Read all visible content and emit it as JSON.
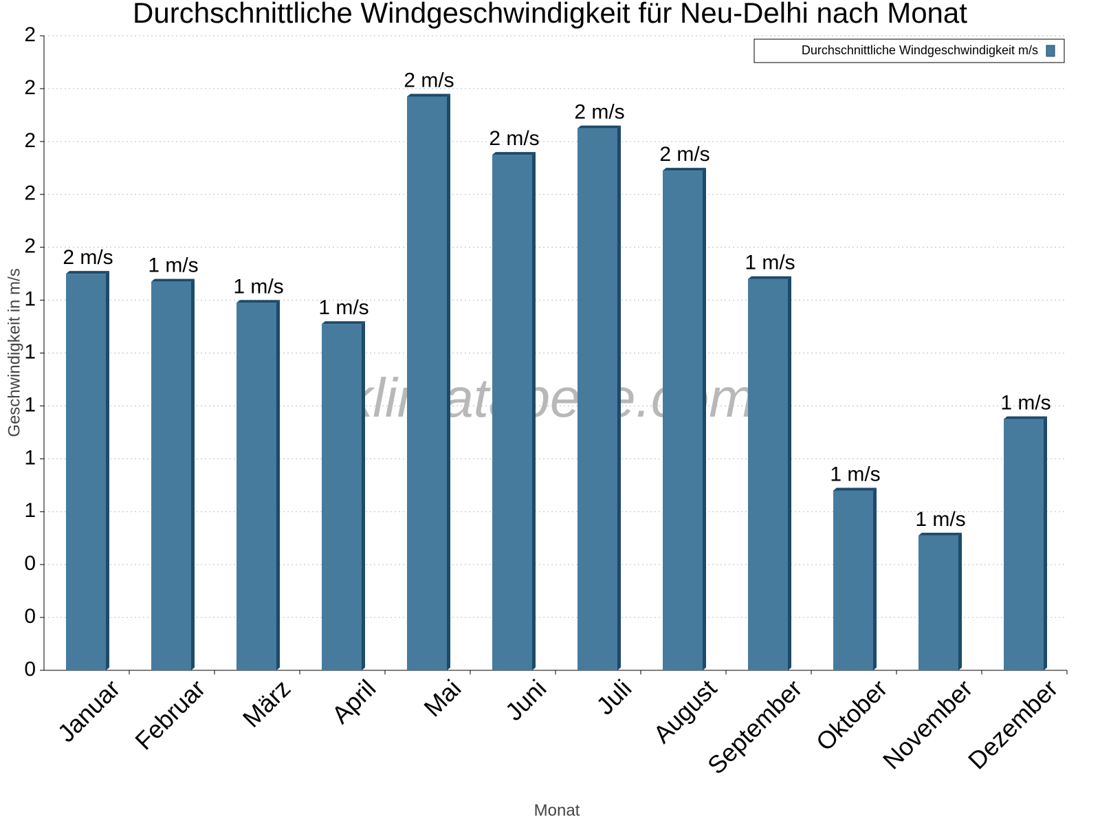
{
  "chart_data": {
    "type": "bar",
    "title": "Durchschnittliche Windgeschwindigkeit für Neu-Delhi nach Monat",
    "x_label": "Monat",
    "y_label": "Geschwindigkeit in m/s",
    "watermark": "klimatabelle.com",
    "categories": [
      "Januar",
      "Februar",
      "März",
      "April",
      "Mai",
      "Juni",
      "Juli",
      "August",
      "September",
      "Oktober",
      "November",
      "Dezember"
    ],
    "series": [
      {
        "name": "Durchschnittliche Windgeschwindigkeit m/s",
        "color": "#467b9e",
        "values": [
          1.5,
          1.47,
          1.39,
          1.31,
          2.17,
          1.95,
          2.05,
          1.89,
          1.48,
          0.68,
          0.51,
          0.95
        ],
        "value_labels": [
          "2 m/s",
          "1 m/s",
          "1 m/s",
          "1 m/s",
          "2 m/s",
          "2 m/s",
          "2 m/s",
          "2 m/s",
          "1 m/s",
          "1 m/s",
          "1 m/s",
          "1 m/s"
        ]
      }
    ],
    "ylim": [
      0,
      2.4
    ],
    "yticks": [
      0,
      {
        "value": 0.2,
        "label": "0"
      },
      {
        "value": 0.4,
        "label": "0"
      },
      {
        "value": 0.6,
        "label": "1"
      },
      {
        "value": 0.8,
        "label": "1"
      },
      1,
      {
        "value": 1.2,
        "label": "1"
      },
      {
        "value": 1.4,
        "label": "1"
      },
      {
        "value": 1.6,
        "label": "2"
      },
      {
        "value": 1.8,
        "label": "2"
      },
      2,
      {
        "value": 2.2,
        "label": "2"
      },
      {
        "value": 2.4,
        "label": "2"
      }
    ],
    "grid": true,
    "legend": "top-right"
  }
}
